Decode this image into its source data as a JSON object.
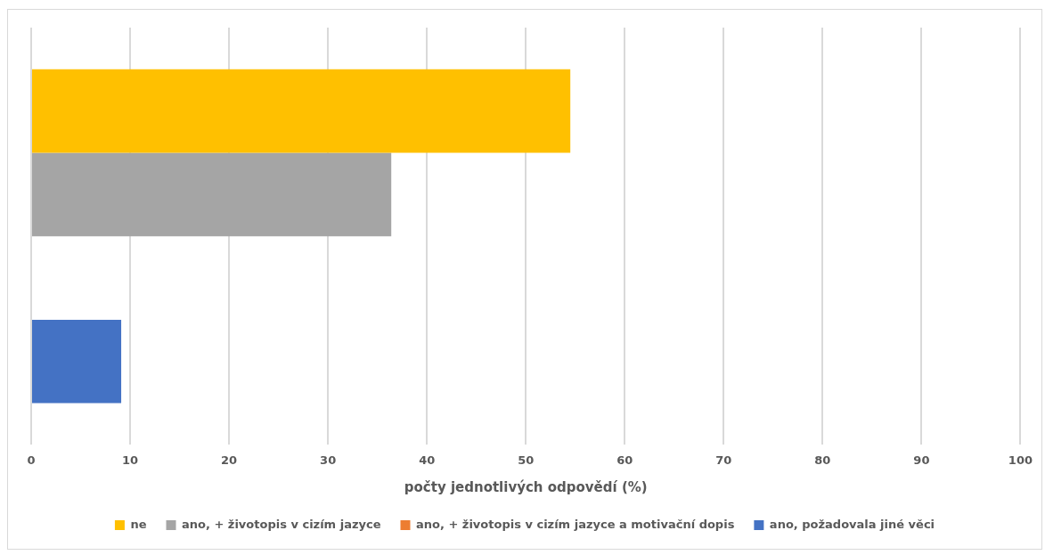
{
  "chart_data": {
    "type": "bar",
    "orientation": "horizontal",
    "xlabel": "počty jednotlivých odpovědí (%)",
    "categories": [
      null
    ],
    "series": [
      {
        "name": "ne",
        "color": "#ffc000",
        "values": [
          54.5
        ]
      },
      {
        "name": "ano, + životopis v cizím jazyce",
        "color": "#a5a5a5",
        "values": [
          36.4
        ]
      },
      {
        "name": "ano, + životopis v cizím jazyce a motivační dopis",
        "color": "#ed7d31",
        "values": [
          0
        ]
      },
      {
        "name": "ano, požadovala jiné věci",
        "color": "#4472c4",
        "values": [
          9.1
        ]
      }
    ],
    "xlim": [
      0,
      100
    ],
    "xticks": [
      0,
      10,
      20,
      30,
      40,
      50,
      60,
      70,
      80,
      90,
      100
    ],
    "grid": "x",
    "legend": "bottom"
  }
}
